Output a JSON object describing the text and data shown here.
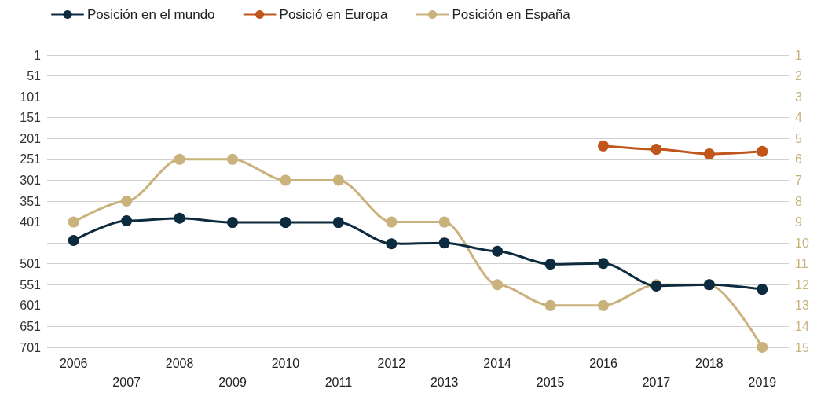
{
  "chart_data": {
    "type": "line",
    "categories": [
      "2006",
      "2007",
      "2008",
      "2009",
      "2010",
      "2011",
      "2012",
      "2013",
      "2014",
      "2015",
      "2016",
      "2017",
      "2018",
      "2019"
    ],
    "series": [
      {
        "name": "Posición en el mundo",
        "color": "#0d2b3e",
        "values": [
          445,
          398,
          392,
          402,
          402,
          402,
          453,
          451,
          471,
          502,
          500,
          554,
          551,
          562
        ]
      },
      {
        "name": "Posició en Europa",
        "color": "#c0561b",
        "values": [
          null,
          null,
          null,
          null,
          null,
          null,
          null,
          null,
          null,
          null,
          219,
          227,
          238,
          232
        ]
      },
      {
        "name": "Posición en España",
        "color": "#c9b27c",
        "axis": "y2",
        "values": [
          9,
          8,
          6,
          6,
          7,
          7,
          9,
          9,
          12,
          13,
          13,
          12,
          12,
          15
        ]
      }
    ],
    "ylim": [
      701,
      1
    ],
    "yticks": [
      1,
      51,
      101,
      151,
      201,
      251,
      301,
      351,
      401,
      {
        "value": 451,
        "label": null
      },
      501,
      551,
      601,
      651,
      701
    ],
    "y2lim": [
      15,
      1
    ],
    "y2ticks": [
      1,
      2,
      3,
      4,
      5,
      6,
      7,
      8,
      9,
      10,
      11,
      12,
      13,
      14,
      15
    ],
    "grid": "y",
    "legend": "top left",
    "marker": "circle",
    "line_style": "solid"
  }
}
